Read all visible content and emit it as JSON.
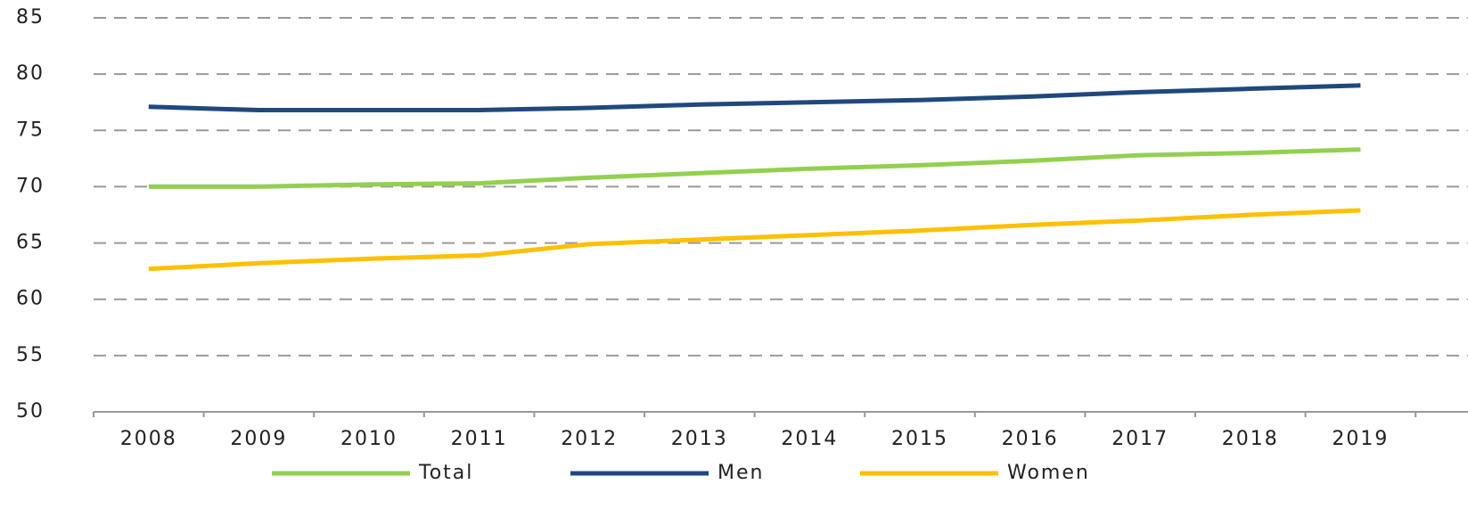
{
  "chart_data": {
    "type": "line",
    "categories": [
      "2008",
      "2009",
      "2010",
      "2011",
      "2012",
      "2013",
      "2014",
      "2015",
      "2016",
      "2017",
      "2018",
      "2019"
    ],
    "series": [
      {
        "name": "Total",
        "color": "#92d050",
        "values": [
          70.0,
          70.0,
          70.2,
          70.3,
          70.8,
          71.2,
          71.6,
          71.9,
          72.3,
          72.8,
          73.0,
          73.3
        ]
      },
      {
        "name": "Men",
        "color": "#1f497d",
        "values": [
          77.1,
          76.8,
          76.8,
          76.8,
          77.0,
          77.3,
          77.5,
          77.7,
          78.0,
          78.4,
          78.7,
          79.0
        ]
      },
      {
        "name": "Women",
        "color": "#ffc000",
        "values": [
          62.7,
          63.2,
          63.6,
          63.9,
          64.9,
          65.3,
          65.7,
          66.1,
          66.6,
          67.0,
          67.5,
          67.9
        ]
      }
    ],
    "ylim": [
      50,
      85
    ],
    "yticks": [
      50,
      55,
      60,
      65,
      70,
      75,
      80,
      85
    ],
    "grid": true,
    "legend": "bottom"
  }
}
